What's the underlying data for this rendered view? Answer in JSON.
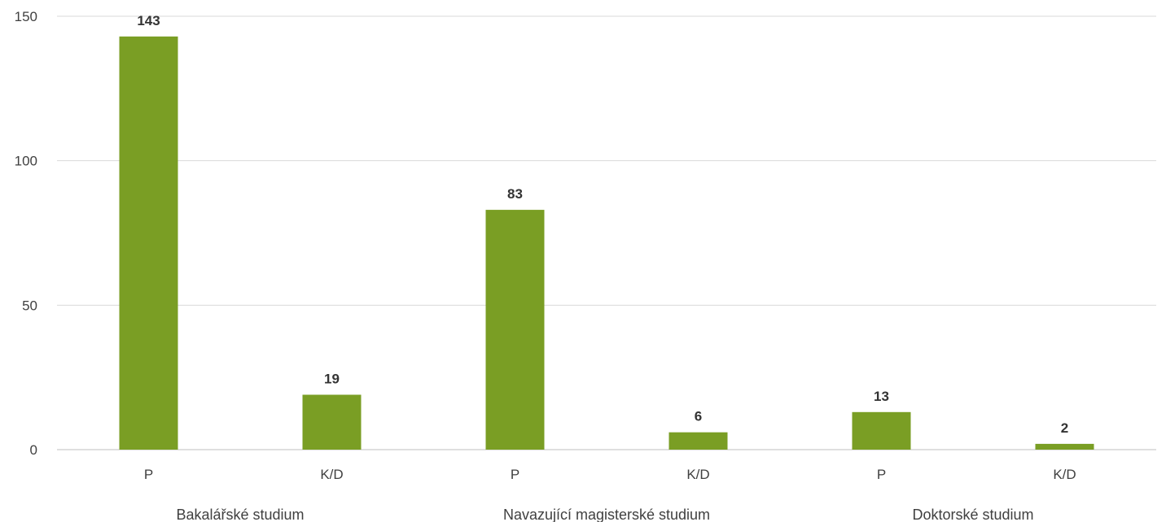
{
  "chart_data": {
    "type": "bar",
    "groups": [
      {
        "label": "Bakalářské studium",
        "categories": [
          "P",
          "K/D"
        ],
        "values": [
          143,
          19
        ]
      },
      {
        "label": "Navazující magisterské studium",
        "categories": [
          "P",
          "K/D"
        ],
        "values": [
          83,
          6
        ]
      },
      {
        "label": "Doktorské studium",
        "categories": [
          "P",
          "K/D"
        ],
        "values": [
          13,
          2
        ]
      }
    ],
    "ylim": [
      0,
      150
    ],
    "yticks": [
      0,
      50,
      100,
      150
    ],
    "grid": true,
    "bar_color": "#7a9e24",
    "data_labels": true
  }
}
